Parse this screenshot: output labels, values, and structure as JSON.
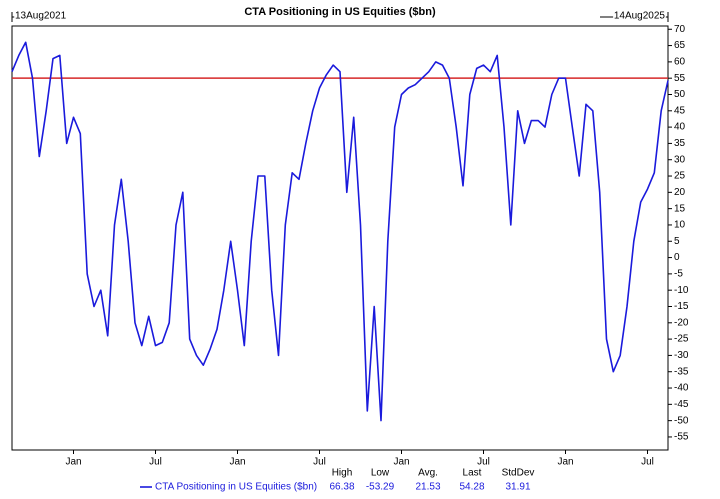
{
  "chart_data": {
    "type": "line",
    "title": "CTA Positioning in US Equities ($bn)",
    "start_label": "13Aug2021",
    "end_label": "14Aug2025",
    "categories": [
      null,
      null,
      null,
      null,
      null,
      null,
      null,
      null,
      null,
      "Jan",
      null,
      null,
      null,
      null,
      null,
      null,
      null,
      null,
      null,
      null,
      null,
      "Jul",
      null,
      null,
      null,
      null,
      null,
      null,
      null,
      null,
      null,
      null,
      null,
      "Jan",
      null,
      null,
      null,
      null,
      null,
      null,
      null,
      null,
      null,
      null,
      null,
      "Jul",
      null,
      null,
      null,
      null,
      null,
      null,
      null,
      null,
      null,
      null,
      null,
      "Jan",
      null,
      null,
      null,
      null,
      null,
      null,
      null,
      null,
      null,
      null,
      null,
      "Jul",
      null,
      null,
      null,
      null,
      null,
      null,
      null,
      null,
      null,
      null,
      null,
      "Jan",
      null,
      null,
      null,
      null,
      null,
      null,
      null,
      null,
      null,
      null,
      null,
      "Jul",
      null,
      null,
      null
    ],
    "series": [
      {
        "name": "CTA Positioning in US Equities ($bn)",
        "color": "#1a1adc",
        "values": [
          57,
          62,
          66,
          55,
          31,
          45,
          61,
          62,
          35,
          43,
          38,
          -5,
          -15,
          -10,
          -24,
          10,
          24,
          5,
          -20,
          -27,
          -18,
          -27,
          -26,
          -20,
          10,
          20,
          -25,
          -30,
          -33,
          -28,
          -22,
          -10,
          5,
          -10,
          -27,
          5,
          25,
          25,
          -10,
          -30,
          10,
          26,
          24,
          35,
          45,
          52,
          56,
          59,
          57,
          20,
          43,
          10,
          -47,
          -15,
          -50,
          5,
          40,
          50,
          52,
          53,
          55,
          57,
          60,
          59,
          55,
          40,
          22,
          50,
          58,
          59,
          57,
          62,
          40,
          10,
          45,
          35,
          42,
          42,
          40,
          50,
          55,
          55,
          40,
          25,
          47,
          45,
          20,
          -25,
          -35,
          -30,
          -15,
          5,
          17,
          21,
          26,
          45,
          54.28
        ]
      }
    ],
    "reference_line": 55,
    "reference_color": "#d62728",
    "ylim": [
      -59,
      71
    ],
    "yticks": [
      70,
      65,
      60,
      55,
      50,
      45,
      40,
      35,
      30,
      25,
      20,
      15,
      10,
      5,
      0,
      -5,
      -10,
      -15,
      -20,
      -25,
      -30,
      -35,
      -40,
      -45,
      -50,
      -55
    ],
    "stats": {
      "headers": [
        "High",
        "Low",
        "Avg.",
        "Last",
        "StdDev"
      ],
      "values": [
        66.38,
        -53.29,
        21.53,
        54.28,
        31.91
      ]
    }
  }
}
